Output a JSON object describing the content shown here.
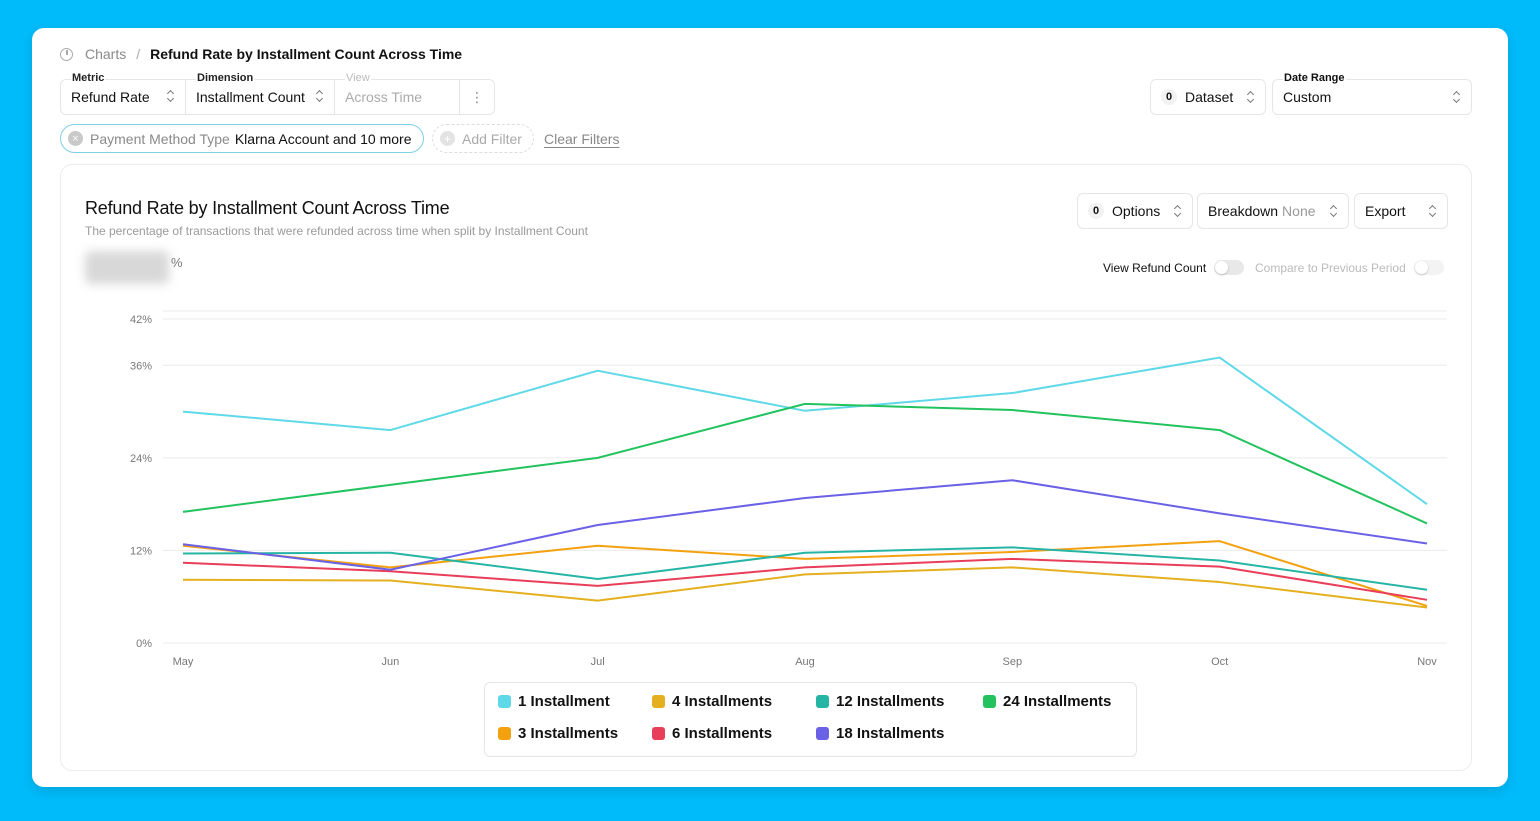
{
  "breadcrumb": {
    "root": "Charts",
    "separator": "/",
    "current": "Refund Rate by Installment Count Across Time"
  },
  "selectors": {
    "metric": {
      "label": "Metric",
      "value": "Refund Rate"
    },
    "dimension": {
      "label": "Dimension",
      "value": "Installment Count"
    },
    "view": {
      "label": "View",
      "value": "Across Time"
    },
    "dataset": {
      "count": "0",
      "label": "Dataset"
    },
    "date_range": {
      "label": "Date Range",
      "value": "Custom"
    }
  },
  "filters": {
    "active": {
      "key": "Payment Method Type",
      "value": "Klarna Account and 10 more"
    },
    "add_label": "Add Filter",
    "clear_label": "Clear Filters"
  },
  "controls": {
    "options": {
      "count": "0",
      "label": "Options"
    },
    "breakdown": {
      "label": "Breakdown",
      "value": "None"
    },
    "export": {
      "label": "Export"
    },
    "view_refund_count": "View Refund Count",
    "compare_previous": "Compare to Previous Period",
    "value_unit": "%"
  },
  "colors": {
    "1": "#5fd9e8",
    "3": "#f3a10f",
    "4": "#e4b01f",
    "6": "#e83e5a",
    "12": "#26b5a5",
    "18": "#6a61e6",
    "24": "#22c35e"
  },
  "chart_data": {
    "type": "line",
    "title": "Refund Rate by Installment Count Across Time",
    "subtitle": "The percentage of transactions that were refunded across time when split by Installment Count",
    "x": [
      "May",
      "Jun",
      "Jul",
      "Aug",
      "Sep",
      "Oct",
      "Nov"
    ],
    "ylim": [
      0,
      42
    ],
    "yticks": [
      "0%",
      "12%",
      "24%",
      "36%",
      "42%"
    ],
    "ytick_values": [
      0,
      12,
      24,
      36,
      42
    ],
    "grid": true,
    "series": [
      {
        "name": "1 Installment",
        "key": "1",
        "values": [
          30.0,
          27.6,
          35.3,
          30.1,
          32.4,
          37.0,
          18.0
        ]
      },
      {
        "name": "3 Installments",
        "key": "3",
        "values": [
          12.6,
          9.8,
          12.6,
          10.9,
          11.8,
          13.2,
          4.8
        ]
      },
      {
        "name": "4 Installments",
        "key": "4",
        "values": [
          8.2,
          8.1,
          5.5,
          8.9,
          9.8,
          7.9,
          4.6
        ]
      },
      {
        "name": "6 Installments",
        "key": "6",
        "values": [
          10.4,
          9.3,
          7.4,
          9.8,
          10.9,
          9.9,
          5.6
        ]
      },
      {
        "name": "12 Installments",
        "key": "12",
        "values": [
          11.6,
          11.7,
          8.3,
          11.7,
          12.4,
          10.7,
          6.9
        ]
      },
      {
        "name": "18 Installments",
        "key": "18",
        "values": [
          12.8,
          9.5,
          15.3,
          18.8,
          21.1,
          16.8,
          12.9
        ]
      },
      {
        "name": "24 Installments",
        "key": "24",
        "values": [
          17.0,
          20.5,
          24.0,
          31.0,
          30.2,
          27.6,
          15.5
        ]
      }
    ],
    "legend": [
      {
        "label": "1 Installment",
        "key": "1"
      },
      {
        "label": "4 Installments",
        "key": "4"
      },
      {
        "label": "12 Installments",
        "key": "12"
      },
      {
        "label": "24 Installments",
        "key": "24"
      },
      {
        "label": "3 Installments",
        "key": "3"
      },
      {
        "label": "6 Installments",
        "key": "6"
      },
      {
        "label": "18 Installments",
        "key": "18"
      }
    ]
  }
}
